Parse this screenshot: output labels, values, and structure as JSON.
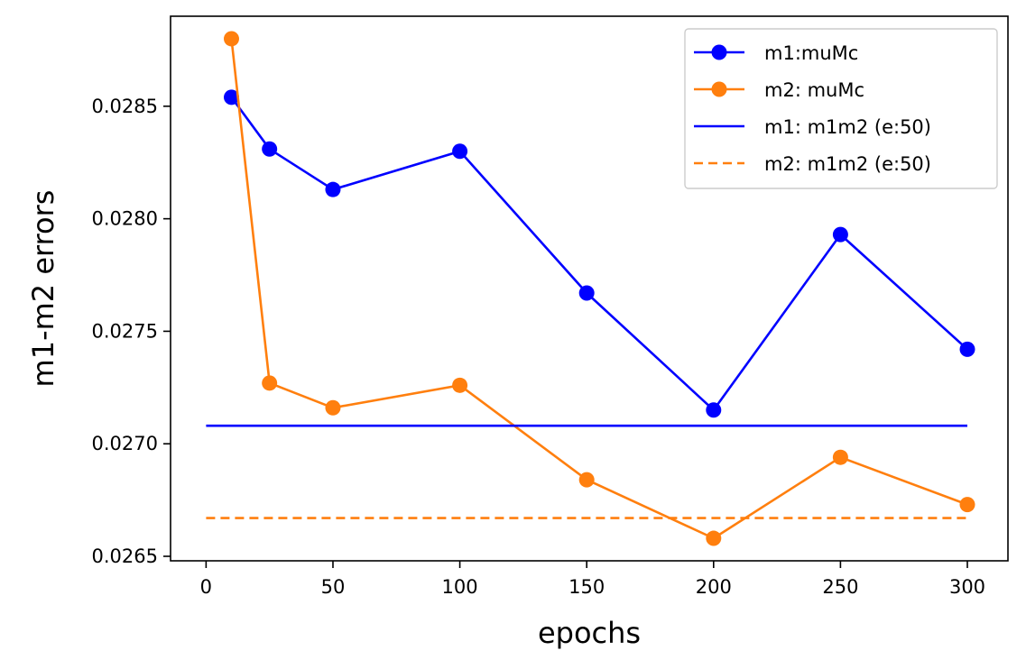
{
  "chart_data": {
    "type": "line",
    "title": "",
    "xlabel": "epochs",
    "ylabel": "m1-m2 errors",
    "xlim": [
      -14,
      316
    ],
    "ylim": [
      0.02648,
      0.0289
    ],
    "x_ticks": [
      0,
      50,
      100,
      150,
      200,
      250,
      300
    ],
    "y_ticks": [
      0.0265,
      0.027,
      0.0275,
      0.028,
      0.0285
    ],
    "y_tick_labels": [
      "0.0265",
      "0.0270",
      "0.0275",
      "0.0280",
      "0.0285"
    ],
    "grid": false,
    "legend_position": "top-right",
    "series": [
      {
        "name": "m1:muMc",
        "color": "#0000ff",
        "style": "solid",
        "marker": "circle",
        "x": [
          10,
          25,
          50,
          100,
          150,
          200,
          250,
          300
        ],
        "y": [
          0.02854,
          0.02831,
          0.02813,
          0.0283,
          0.02767,
          0.02715,
          0.02793,
          0.02742
        ]
      },
      {
        "name": "m2: muMc",
        "color": "#ff7f0e",
        "style": "solid",
        "marker": "circle",
        "x": [
          10,
          25,
          50,
          100,
          150,
          200,
          250,
          300
        ],
        "y": [
          0.0288,
          0.02727,
          0.02716,
          0.02726,
          0.02684,
          0.02658,
          0.02694,
          0.02673
        ]
      },
      {
        "name": "m1: m1m2 (e:50)",
        "color": "#0000ff",
        "style": "solid",
        "marker": "none",
        "x": [
          0,
          300
        ],
        "y": [
          0.02708,
          0.02708
        ]
      },
      {
        "name": "m2: m1m2 (e:50)",
        "color": "#ff7f0e",
        "style": "dashed",
        "marker": "none",
        "x": [
          0,
          300
        ],
        "y": [
          0.02667,
          0.02667
        ]
      }
    ]
  }
}
